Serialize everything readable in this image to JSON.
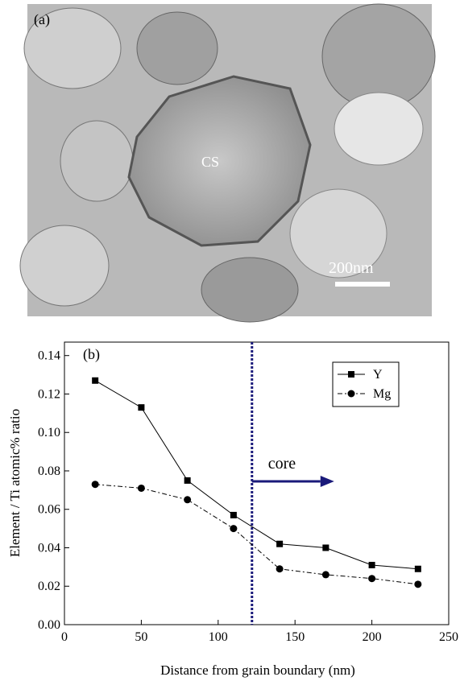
{
  "micrograph": {
    "panel_label": "(a)",
    "annotation": "CS",
    "scale_bar": "200nm"
  },
  "chart_data": {
    "type": "line",
    "panel_label": "(b)",
    "x_label": "Distance from grain boundary (nm)",
    "y_label": "Element / Ti atomic% ratio",
    "x": [
      20,
      50,
      80,
      110,
      140,
      170,
      200,
      230
    ],
    "series": [
      {
        "name": "Y",
        "color": "#000000",
        "marker": "square",
        "dash": "solid",
        "values": [
          0.127,
          0.113,
          0.075,
          0.057,
          0.042,
          0.04,
          0.031,
          0.029
        ]
      },
      {
        "name": "Mg",
        "color": "#000000",
        "marker": "circle",
        "dash": "dashdot",
        "values": [
          0.073,
          0.071,
          0.065,
          0.05,
          0.029,
          0.026,
          0.024,
          0.021
        ]
      }
    ],
    "xlim": [
      0,
      250
    ],
    "xticks": [
      0,
      50,
      100,
      150,
      200,
      250
    ],
    "ylim": [
      0,
      0.147
    ],
    "yticks": [
      {
        "value": 0,
        "label": "0.00"
      },
      0.02,
      0.04,
      0.06,
      0.08,
      {
        "value": 0.1,
        "label": "0.10"
      },
      0.12,
      0.14
    ],
    "reference_line": {
      "x": 122,
      "label": "core",
      "color": "#1a1a7a"
    },
    "legend": "upper right",
    "grid": false
  }
}
